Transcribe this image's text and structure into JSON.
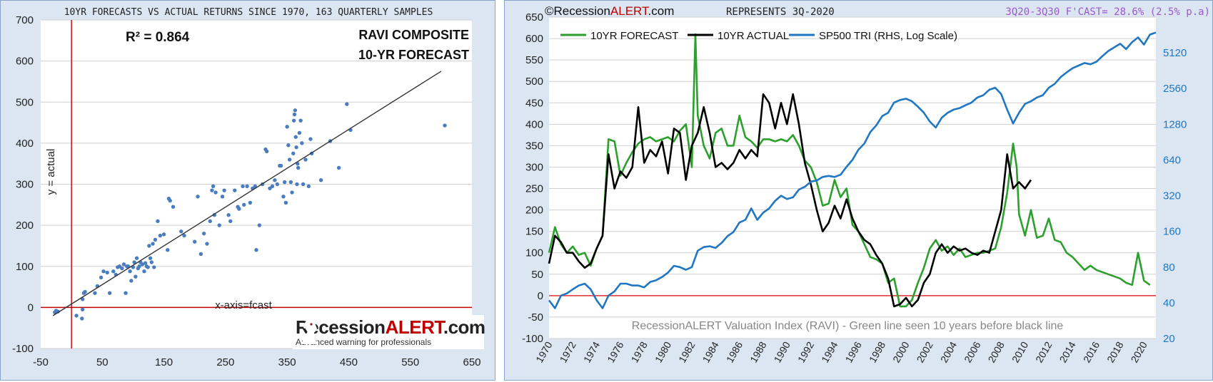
{
  "chart_data": [
    {
      "type": "scatter",
      "title": "10YR FORECASTS VS ACTUAL RETURNS SINCE 1970, 163 QUARTERLY SAMPLES",
      "xlabel": "x-axis=fcast",
      "ylabel": "y = actual",
      "annotation_r2": "R² = 0.864",
      "annotation_name_1": "RAVI COMPOSITE",
      "annotation_name_2": "10-YR FORECAST",
      "xlim": [
        -50,
        650
      ],
      "ylim": [
        -100,
        700
      ],
      "x_ticks": [
        "-50",
        "50",
        "150",
        "250",
        "350",
        "450",
        "550",
        "650"
      ],
      "y_ticks": [
        "-100",
        "0",
        "100",
        "200",
        "300",
        "400",
        "500",
        "600",
        "700"
      ],
      "grid": true,
      "trendline": {
        "x": [
          -30,
          600
        ],
        "y": [
          -20,
          575
        ]
      },
      "points": [
        [
          -27,
          -12
        ],
        [
          -25,
          -8
        ],
        [
          -22,
          -10
        ],
        [
          8,
          -20
        ],
        [
          17,
          -27
        ],
        [
          18,
          -5
        ],
        [
          18,
          20
        ],
        [
          20,
          35
        ],
        [
          22,
          38
        ],
        [
          38,
          35
        ],
        [
          42,
          52
        ],
        [
          48,
          73
        ],
        [
          52,
          88
        ],
        [
          58,
          85
        ],
        [
          62,
          35
        ],
        [
          68,
          88
        ],
        [
          72,
          80
        ],
        [
          75,
          98
        ],
        [
          78,
          100
        ],
        [
          82,
          95
        ],
        [
          85,
          105
        ],
        [
          88,
          35
        ],
        [
          90,
          100
        ],
        [
          92,
          100
        ],
        [
          95,
          88
        ],
        [
          97,
          65
        ],
        [
          100,
          98
        ],
        [
          102,
          110
        ],
        [
          104,
          75
        ],
        [
          106,
          120
        ],
        [
          108,
          95
        ],
        [
          110,
          100
        ],
        [
          112,
          110
        ],
        [
          115,
          105
        ],
        [
          118,
          88
        ],
        [
          120,
          108
        ],
        [
          122,
          100
        ],
        [
          124,
          98
        ],
        [
          126,
          150
        ],
        [
          128,
          120
        ],
        [
          130,
          110
        ],
        [
          132,
          155
        ],
        [
          134,
          98
        ],
        [
          136,
          165
        ],
        [
          140,
          210
        ],
        [
          144,
          175
        ],
        [
          150,
          178
        ],
        [
          156,
          140
        ],
        [
          158,
          265
        ],
        [
          160,
          260
        ],
        [
          165,
          245
        ],
        [
          178,
          185
        ],
        [
          183,
          175
        ],
        [
          200,
          160
        ],
        [
          205,
          270
        ],
        [
          210,
          130
        ],
        [
          215,
          180
        ],
        [
          220,
          155
        ],
        [
          225,
          210
        ],
        [
          228,
          285
        ],
        [
          230,
          295
        ],
        [
          232,
          225
        ],
        [
          234,
          280
        ],
        [
          240,
          200
        ],
        [
          245,
          270
        ],
        [
          248,
          285
        ],
        [
          255,
          225
        ],
        [
          258,
          210
        ],
        [
          265,
          285
        ],
        [
          270,
          245
        ],
        [
          272,
          240
        ],
        [
          278,
          295
        ],
        [
          280,
          250
        ],
        [
          285,
          295
        ],
        [
          290,
          255
        ],
        [
          294,
          290
        ],
        [
          298,
          295
        ],
        [
          300,
          140
        ],
        [
          305,
          200
        ],
        [
          310,
          300
        ],
        [
          315,
          385
        ],
        [
          317,
          380
        ],
        [
          322,
          290
        ],
        [
          326,
          295
        ],
        [
          330,
          310
        ],
        [
          334,
          300
        ],
        [
          338,
          345
        ],
        [
          340,
          345
        ],
        [
          344,
          270
        ],
        [
          346,
          305
        ],
        [
          348,
          255
        ],
        [
          350,
          440
        ],
        [
          352,
          395
        ],
        [
          354,
          360
        ],
        [
          356,
          305
        ],
        [
          358,
          280
        ],
        [
          360,
          375
        ],
        [
          361,
          455
        ],
        [
          362,
          470
        ],
        [
          363,
          480
        ],
        [
          364,
          415
        ],
        [
          365,
          390
        ],
        [
          366,
          300
        ],
        [
          367,
          350
        ],
        [
          368,
          340
        ],
        [
          370,
          425
        ],
        [
          372,
          455
        ],
        [
          374,
          400
        ],
        [
          376,
          300
        ],
        [
          380,
          360
        ],
        [
          385,
          295
        ],
        [
          388,
          410
        ],
        [
          390,
          375
        ],
        [
          405,
          310
        ],
        [
          420,
          405
        ],
        [
          434,
          340
        ],
        [
          447,
          495
        ],
        [
          453,
          432
        ],
        [
          606,
          443
        ]
      ]
    },
    {
      "type": "line",
      "header_site_prefix": "©Recession",
      "header_site_alert": "ALERT",
      "header_site_suffix": ".com",
      "header_represents": "REPRESENTS 3Q-2020",
      "header_forecast": "3Q20-3Q30 F'CAST= 28.6% (2.5% p.a)",
      "annotation": "RecessionALERT Valuation Index (RAVI) - Green line seen 10 years before black line",
      "ylim_left": [
        -100,
        650
      ],
      "y_ticks_left": [
        "-100",
        "-50",
        "0",
        "50",
        "100",
        "150",
        "200",
        "250",
        "300",
        "350",
        "400",
        "450",
        "500",
        "550",
        "600",
        "650"
      ],
      "y_ticks_right": [
        "20",
        "40",
        "80",
        "160",
        "320",
        "640",
        "1280",
        "2560",
        "5120"
      ],
      "right_axis_scale": "log",
      "xlim": [
        1970,
        2021
      ],
      "x_ticks": [
        "1970",
        "1972",
        "1974",
        "1976",
        "1978",
        "1980",
        "1982",
        "1984",
        "1986",
        "1988",
        "1990",
        "1992",
        "1994",
        "1996",
        "1998",
        "2000",
        "2002",
        "2004",
        "2006",
        "2008",
        "2010",
        "2012",
        "2014",
        "2016",
        "2018",
        "2020"
      ],
      "grid": true,
      "series": [
        {
          "name": "10YR FORECAST",
          "color": "#2ca02c",
          "x": [
            1970,
            1970.5,
            1971,
            1971.5,
            1972,
            1972.5,
            1973,
            1973.5,
            1974,
            1974.5,
            1975,
            1975.5,
            1976,
            1976.5,
            1977,
            1977.5,
            1978,
            1978.5,
            1979,
            1979.5,
            1980,
            1980.5,
            1981,
            1981.5,
            1982,
            1982.3,
            1982.5,
            1983,
            1983.5,
            1984,
            1984.5,
            1985,
            1985.5,
            1986,
            1986.5,
            1987,
            1987.5,
            1988,
            1988.5,
            1989,
            1989.5,
            1990,
            1990.5,
            1991,
            1991.5,
            1992,
            1992.5,
            1993,
            1993.5,
            1994,
            1994.5,
            1995,
            1995.5,
            1996,
            1996.5,
            1997,
            1997.5,
            1998,
            1998.5,
            1999,
            1999.5,
            2000,
            2000.5,
            2001,
            2001.5,
            2002,
            2002.5,
            2003,
            2003.5,
            2004,
            2004.5,
            2005,
            2005.5,
            2006,
            2006.5,
            2007,
            2007.5,
            2008,
            2008.5,
            2009,
            2009.3,
            2009.5,
            2010,
            2010.5,
            2011,
            2011.5,
            2012,
            2012.5,
            2013,
            2013.5,
            2014,
            2014.5,
            2015,
            2015.5,
            2016,
            2016.5,
            2017,
            2017.5,
            2018,
            2018.5,
            2019,
            2019.5,
            2020,
            2020.5
          ],
          "y": [
            100,
            160,
            120,
            100,
            115,
            95,
            100,
            70,
            110,
            140,
            365,
            360,
            280,
            310,
            335,
            355,
            365,
            370,
            360,
            365,
            370,
            360,
            385,
            400,
            300,
            610,
            420,
            350,
            320,
            380,
            390,
            350,
            350,
            420,
            370,
            360,
            345,
            365,
            365,
            360,
            365,
            360,
            375,
            350,
            315,
            300,
            265,
            210,
            215,
            270,
            230,
            250,
            165,
            150,
            120,
            90,
            85,
            75,
            30,
            40,
            -25,
            -25,
            -10,
            30,
            65,
            110,
            130,
            105,
            115,
            95,
            110,
            90,
            95,
            100,
            100,
            105,
            110,
            160,
            240,
            355,
            300,
            190,
            140,
            200,
            135,
            140,
            180,
            130,
            125,
            100,
            90,
            75,
            60,
            70,
            60,
            55,
            50,
            45,
            40,
            30,
            25,
            100,
            35,
            25
          ]
        },
        {
          "name": "10YR ACTUAL",
          "color": "#000000",
          "x": [
            1970,
            1970.5,
            1971,
            1971.5,
            1972,
            1972.5,
            1973,
            1973.5,
            1974,
            1974.5,
            1975,
            1975.5,
            1976,
            1976.5,
            1977,
            1977.5,
            1978,
            1978.5,
            1979,
            1979.5,
            1980,
            1980.5,
            1981,
            1981.5,
            1982,
            1982.5,
            1983,
            1983.5,
            1984,
            1984.5,
            1985,
            1985.5,
            1986,
            1986.5,
            1987,
            1987.5,
            1988,
            1988.5,
            1989,
            1989.5,
            1990,
            1990.5,
            1991,
            1991.5,
            1992,
            1992.5,
            1993,
            1993.5,
            1994,
            1994.5,
            1995,
            1995.5,
            1996,
            1996.5,
            1997,
            1997.5,
            1998,
            1998.5,
            1999,
            1999.5,
            2000,
            2000.5,
            2001,
            2001.5,
            2002,
            2002.5,
            2003,
            2003.5,
            2004,
            2004.5,
            2005,
            2005.5,
            2006,
            2006.5,
            2007,
            2007.5,
            2008,
            2008.5,
            2009,
            2009.5,
            2010,
            2010.5
          ],
          "y": [
            75,
            140,
            125,
            100,
            100,
            80,
            65,
            75,
            110,
            140,
            330,
            250,
            290,
            275,
            300,
            440,
            310,
            340,
            325,
            360,
            285,
            390,
            380,
            270,
            350,
            380,
            440,
            380,
            300,
            310,
            295,
            310,
            340,
            320,
            340,
            325,
            470,
            450,
            390,
            450,
            400,
            470,
            400,
            310,
            260,
            200,
            150,
            170,
            210,
            180,
            225,
            180,
            150,
            130,
            120,
            95,
            75,
            40,
            -25,
            -20,
            -5,
            -25,
            -10,
            30,
            50,
            100,
            120,
            100,
            115,
            105,
            110,
            100,
            95,
            105,
            100,
            150,
            200,
            330,
            250,
            265,
            250,
            270
          ]
        },
        {
          "name": "SP500 TRI (RHS, Log Scale)",
          "color": "#1f77c4",
          "x": [
            1970,
            1970.5,
            1971,
            1971.5,
            1972,
            1972.5,
            1973,
            1973.5,
            1974,
            1974.5,
            1975,
            1975.5,
            1976,
            1976.5,
            1977,
            1977.5,
            1978,
            1978.5,
            1979,
            1979.5,
            1980,
            1980.5,
            1981,
            1981.5,
            1982,
            1982.5,
            1983,
            1983.5,
            1984,
            1984.5,
            1985,
            1985.5,
            1986,
            1986.5,
            1987,
            1987.5,
            1988,
            1988.5,
            1989,
            1989.5,
            1990,
            1990.5,
            1991,
            1991.5,
            1992,
            1992.5,
            1993,
            1993.5,
            1994,
            1994.5,
            1995,
            1995.5,
            1996,
            1996.5,
            1997,
            1997.5,
            1998,
            1998.5,
            1999,
            1999.5,
            2000,
            2000.5,
            2001,
            2001.5,
            2002,
            2002.5,
            2003,
            2003.5,
            2004,
            2004.5,
            2005,
            2005.5,
            2006,
            2006.5,
            2007,
            2007.5,
            2008,
            2008.5,
            2009,
            2009.5,
            2010,
            2010.5,
            2011,
            2011.5,
            2012,
            2012.5,
            2013,
            2013.5,
            2014,
            2014.5,
            2015,
            2015.5,
            2016,
            2016.5,
            2017,
            2017.5,
            2018,
            2018.5,
            2019,
            2019.5,
            2020,
            2020.5,
            2021
          ],
          "y": [
            42,
            36,
            46,
            48,
            52,
            56,
            58,
            52,
            42,
            36,
            46,
            50,
            58,
            58,
            56,
            56,
            54,
            60,
            62,
            66,
            72,
            82,
            80,
            76,
            80,
            110,
            118,
            120,
            116,
            128,
            146,
            158,
            190,
            200,
            250,
            200,
            230,
            250,
            290,
            320,
            300,
            310,
            360,
            380,
            420,
            430,
            460,
            470,
            460,
            480,
            560,
            640,
            780,
            880,
            1100,
            1250,
            1500,
            1600,
            1950,
            2050,
            2100,
            2000,
            1800,
            1600,
            1350,
            1200,
            1450,
            1600,
            1700,
            1750,
            1850,
            1950,
            2150,
            2250,
            2500,
            2600,
            2300,
            1700,
            1300,
            1600,
            1900,
            2000,
            2150,
            2250,
            2600,
            2800,
            3200,
            3500,
            3800,
            4000,
            4200,
            4100,
            4300,
            4800,
            5300,
            5700,
            6100,
            5500,
            6300,
            6900,
            6000,
            7300,
            7600
          ]
        }
      ]
    }
  ],
  "logo": {
    "prefix": "Recession",
    "alert": "ALERT",
    "suffix": ".com",
    "tagline": "Advanced warning for professionals"
  }
}
